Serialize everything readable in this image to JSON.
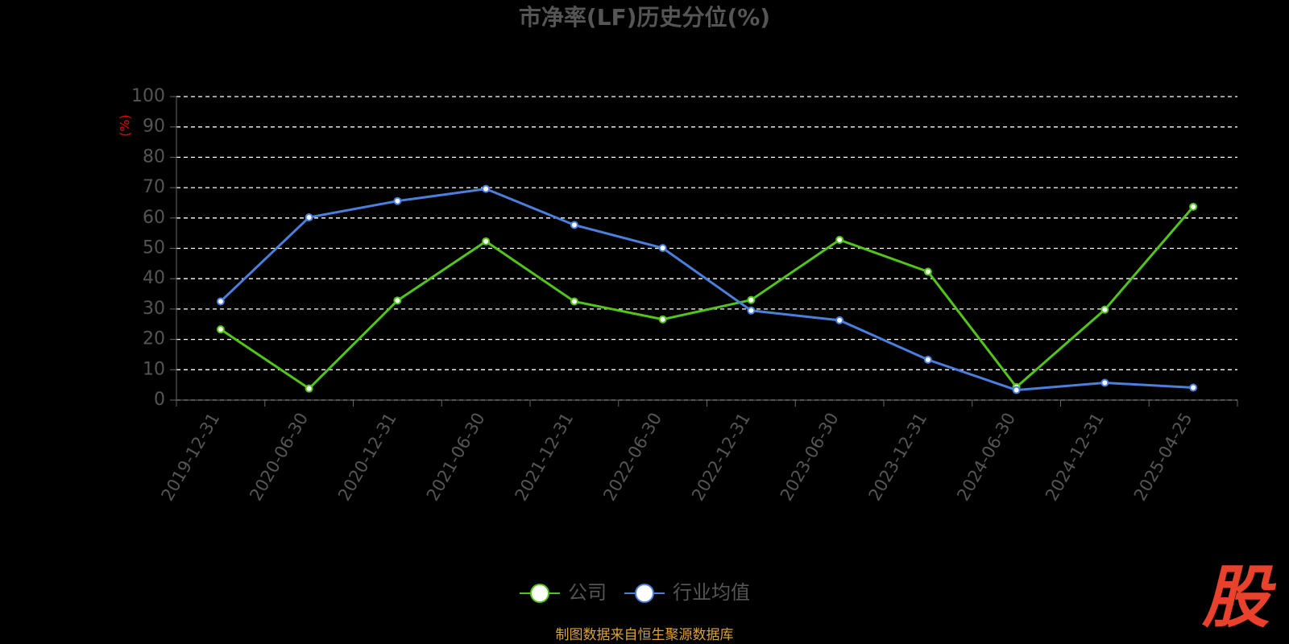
{
  "chart_data": {
    "type": "line",
    "title": "市净率(LF)历史分位(%)",
    "y_label": "(%)",
    "categories": [
      "2019-12-31",
      "2020-06-30",
      "2020-12-31",
      "2021-06-30",
      "2021-12-31",
      "2022-06-30",
      "2022-12-31",
      "2023-06-30",
      "2023-12-31",
      "2024-06-30",
      "2024-12-31",
      "2025-04-25"
    ],
    "series": [
      {
        "name": "公司",
        "color": "#52c41a",
        "values": [
          23.3,
          3.8,
          32.8,
          52.3,
          32.5,
          26.6,
          33,
          52.8,
          42.3,
          4.3,
          29.8,
          63.7
        ]
      },
      {
        "name": "行业均值",
        "color": "#4a7fdc",
        "values": [
          32.5,
          60.2,
          65.6,
          69.6,
          57.7,
          50.1,
          29.5,
          26.3,
          13.3,
          3.3,
          5.7,
          4.1
        ]
      }
    ],
    "ylim": [
      0,
      100
    ],
    "yticks": [
      0,
      10,
      20,
      30,
      40,
      50,
      60,
      70,
      80,
      90,
      100
    ],
    "grid": true,
    "legend": "bottom",
    "source": "制图数据来自恒生聚源数据库",
    "logo": "股"
  }
}
